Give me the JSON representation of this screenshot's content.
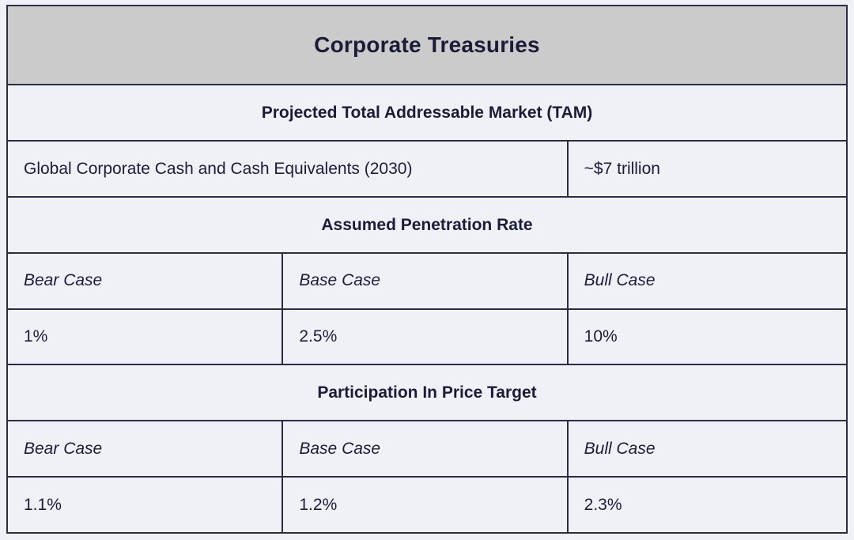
{
  "title": "Corporate Treasuries",
  "tam": {
    "header": "Projected Total Addressable Market (TAM)",
    "label": "Global Corporate Cash and Cash Equivalents (2030)",
    "value": "~$7 trillion"
  },
  "penetration": {
    "header": "Assumed Penetration Rate",
    "cases": [
      "Bear Case",
      "Base Case",
      "Bull Case"
    ],
    "values": [
      "1%",
      "2.5%",
      "10%"
    ]
  },
  "price_target": {
    "header": "Participation In Price Target",
    "cases": [
      "Bear Case",
      "Base Case",
      "Bull Case"
    ],
    "values": [
      "1.1%",
      "1.2%",
      "2.3%"
    ]
  },
  "colors": {
    "page_background": "#eff1f6",
    "title_band_background": "#cbcbcb",
    "border": "#2b2d45",
    "text": "#1b1d38"
  }
}
